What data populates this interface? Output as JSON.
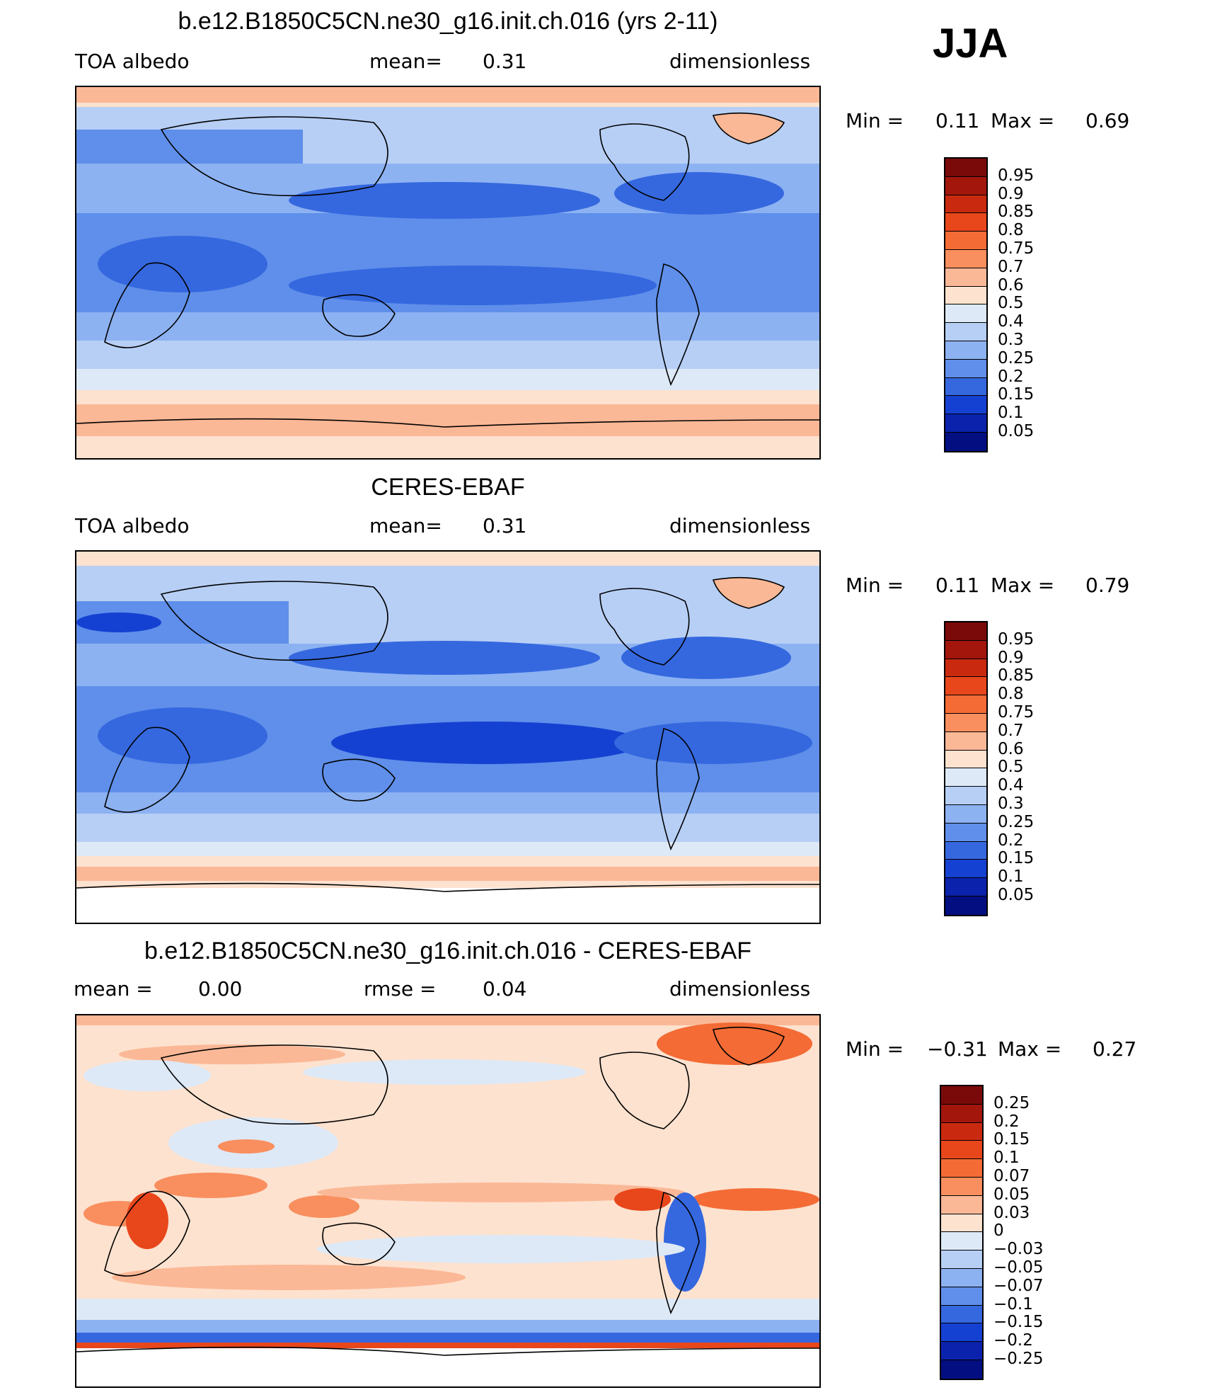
{
  "season": "JJA",
  "panels": [
    {
      "title": "b.e12.B1850C5CN.ne30_g16.init.ch.016 (yrs 2-11)",
      "left_label": "TOA albedo",
      "center_label": "mean=",
      "center_value": "0.31",
      "right_label": "dimensionless",
      "min_label": "Min =",
      "min_value": "0.11",
      "max_label": "Max =",
      "max_value": "0.69",
      "colorbar": {
        "labels": [
          "0.95",
          "0.9",
          "0.85",
          "0.8",
          "0.75",
          "0.7",
          "0.6",
          "0.5",
          "0.4",
          "0.3",
          "0.25",
          "0.2",
          "0.15",
          "0.1",
          "0.05"
        ],
        "colors": [
          "#7a0a0a",
          "#a3160c",
          "#c92a0f",
          "#e8461b",
          "#f46b35",
          "#f98e5e",
          "#fbb896",
          "#fde2cf",
          "#dde9f7",
          "#b7cff5",
          "#8db2f2",
          "#5f8fea",
          "#3568df",
          "#1541d2",
          "#0a22ac",
          "#030e80"
        ]
      }
    },
    {
      "title": "CERES-EBAF",
      "left_label": "TOA albedo",
      "center_label": "mean=",
      "center_value": "0.31",
      "right_label": "dimensionless",
      "min_label": "Min =",
      "min_value": "0.11",
      "max_label": "Max =",
      "max_value": "0.79",
      "colorbar": {
        "labels": [
          "0.95",
          "0.9",
          "0.85",
          "0.8",
          "0.75",
          "0.7",
          "0.6",
          "0.5",
          "0.4",
          "0.3",
          "0.25",
          "0.2",
          "0.15",
          "0.1",
          "0.05"
        ],
        "colors": [
          "#7a0a0a",
          "#a3160c",
          "#c92a0f",
          "#e8461b",
          "#f46b35",
          "#f98e5e",
          "#fbb896",
          "#fde2cf",
          "#dde9f7",
          "#b7cff5",
          "#8db2f2",
          "#5f8fea",
          "#3568df",
          "#1541d2",
          "#0a22ac",
          "#030e80"
        ]
      }
    },
    {
      "title": "b.e12.B1850C5CN.ne30_g16.init.ch.016 - CERES-EBAF",
      "left_label": "mean =",
      "left_value": "0.00",
      "center_label": "rmse =",
      "center_value": "0.04",
      "right_label": "dimensionless",
      "min_label": "Min =",
      "min_value": "−0.31",
      "max_label": "Max =",
      "max_value": "0.27",
      "colorbar": {
        "labels": [
          "0.25",
          "0.2",
          "0.15",
          "0.1",
          "0.07",
          "0.05",
          "0.03",
          "0",
          "−0.03",
          "−0.05",
          "−0.07",
          "−0.1",
          "−0.15",
          "−0.2",
          "−0.25"
        ],
        "colors": [
          "#7a0a0a",
          "#a3160c",
          "#c92a0f",
          "#e8461b",
          "#f46b35",
          "#f98e5e",
          "#fbb896",
          "#fde2cf",
          "#dde9f7",
          "#b7cff5",
          "#8db2f2",
          "#5f8fea",
          "#3568df",
          "#1541d2",
          "#0a22ac",
          "#030e80"
        ]
      }
    }
  ]
}
